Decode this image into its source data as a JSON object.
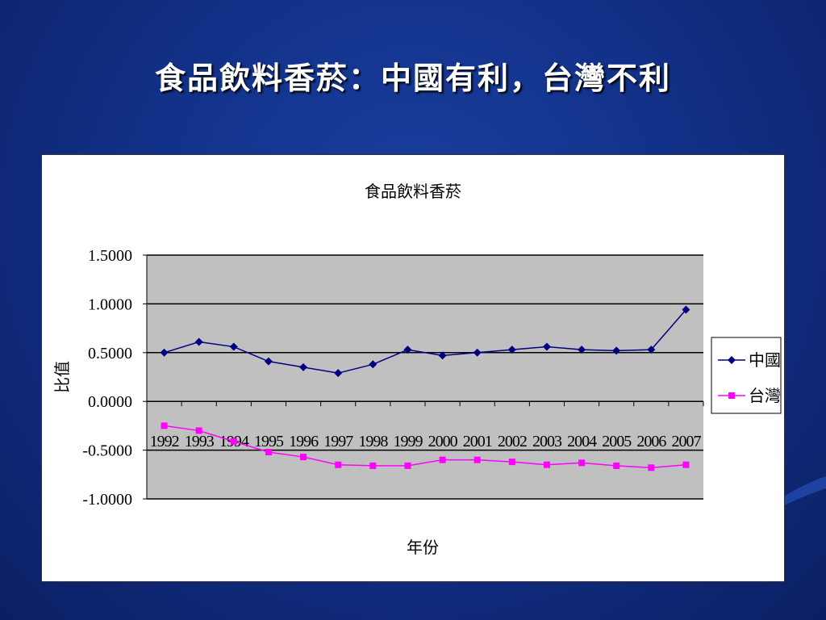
{
  "slide": {
    "title": "食品飲料香菸：中國有利，台灣不利"
  },
  "chart_data": {
    "type": "line",
    "title": "食品飲料香菸",
    "xlabel": "年份",
    "ylabel": "比值",
    "ylim": [
      -1.0,
      1.5
    ],
    "yticks": [
      "1.5000",
      "1.0000",
      "0.5000",
      "0.0000",
      "-0.5000",
      "-1.0000"
    ],
    "ytick_values": [
      1.5,
      1.0,
      0.5,
      0.0,
      -0.5,
      -1.0
    ],
    "categories": [
      "1992",
      "1993",
      "1994",
      "1995",
      "1996",
      "1997",
      "1998",
      "1999",
      "2000",
      "2001",
      "2002",
      "2003",
      "2004",
      "2005",
      "2006",
      "2007"
    ],
    "grid": true,
    "legend_position": "right",
    "series": [
      {
        "name": "中國",
        "color": "#000080",
        "marker": "diamond",
        "values": [
          0.5,
          0.61,
          0.56,
          0.41,
          0.35,
          0.29,
          0.38,
          0.53,
          0.47,
          0.5,
          0.53,
          0.56,
          0.53,
          0.52,
          0.53,
          0.94
        ]
      },
      {
        "name": "台灣",
        "color": "#ff00ff",
        "marker": "square",
        "values": [
          -0.25,
          -0.3,
          -0.41,
          -0.52,
          -0.57,
          -0.65,
          -0.66,
          -0.66,
          -0.6,
          -0.6,
          -0.62,
          -0.65,
          -0.63,
          -0.66,
          -0.68,
          -0.65
        ]
      }
    ]
  }
}
